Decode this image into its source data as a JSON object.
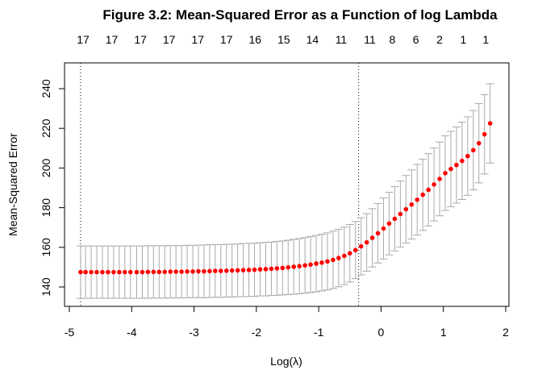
{
  "chart_data": {
    "type": "scatter",
    "title": "Figure 3.2: Mean-Squared Error as a Function of log Lambda",
    "xlabel": "Log(λ)",
    "ylabel": "Mean-Squared Error",
    "xlim": [
      -5,
      2
    ],
    "ylim": [
      130,
      250
    ],
    "x_ticks": [
      -5,
      -4,
      -3,
      -2,
      -1,
      0,
      1,
      2
    ],
    "y_ticks": [
      140,
      160,
      180,
      200,
      220,
      240
    ],
    "x_tick_labels": [
      "-5",
      "-4",
      "-3",
      "-2",
      "-1",
      "0",
      "1",
      "2"
    ],
    "y_tick_labels": [
      "140",
      "160",
      "180",
      "200",
      "220",
      "240"
    ],
    "top_axis": {
      "positions": [
        -4.78,
        -4.32,
        -3.86,
        -3.4,
        -2.94,
        -2.48,
        -2.02,
        -1.56,
        -1.1,
        -0.64,
        -0.18,
        0.18,
        0.56,
        0.94,
        1.32,
        1.68
      ],
      "labels": [
        "17",
        "17",
        "17",
        "17",
        "17",
        "17",
        "16",
        "15",
        "14",
        "11",
        "11",
        "8",
        "6",
        "2",
        "1",
        "1"
      ]
    },
    "reference_lines": [
      -4.82,
      -0.36
    ],
    "grid": false,
    "point_color": "#ff0000",
    "errorbar_color": "#a9a9a9",
    "series": [
      {
        "x": [
          -4.82,
          -4.74,
          -4.65,
          -4.56,
          -4.47,
          -4.38,
          -4.29,
          -4.2,
          -4.11,
          -4.02,
          -3.92,
          -3.83,
          -3.74,
          -3.65,
          -3.56,
          -3.47,
          -3.38,
          -3.29,
          -3.2,
          -3.11,
          -3.02,
          -2.93,
          -2.84,
          -2.75,
          -2.66,
          -2.57,
          -2.48,
          -2.39,
          -2.3,
          -2.21,
          -2.12,
          -2.03,
          -1.94,
          -1.85,
          -1.76,
          -1.67,
          -1.58,
          -1.49,
          -1.4,
          -1.31,
          -1.22,
          -1.13,
          -1.04,
          -0.95,
          -0.86,
          -0.77,
          -0.68,
          -0.59,
          -0.5,
          -0.41,
          -0.32,
          -0.23,
          -0.14,
          -0.05,
          0.04,
          0.13,
          0.22,
          0.31,
          0.4,
          0.49,
          0.58,
          0.67,
          0.76,
          0.85,
          0.94,
          1.03,
          1.12,
          1.21,
          1.3,
          1.39,
          1.48,
          1.57,
          1.66,
          1.75
        ],
        "y": [
          147.5,
          147.5,
          147.5,
          147.5,
          147.5,
          147.5,
          147.5,
          147.5,
          147.5,
          147.5,
          147.5,
          147.5,
          147.6,
          147.6,
          147.6,
          147.6,
          147.7,
          147.7,
          147.7,
          147.8,
          147.8,
          147.9,
          147.9,
          148.0,
          148.1,
          148.1,
          148.2,
          148.3,
          148.4,
          148.5,
          148.6,
          148.7,
          148.9,
          149.0,
          149.2,
          149.4,
          149.6,
          149.9,
          150.2,
          150.5,
          150.9,
          151.3,
          151.8,
          152.3,
          152.9,
          153.7,
          154.6,
          155.7,
          157.0,
          158.6,
          160.5,
          162.5,
          164.8,
          167.1,
          169.5,
          172.0,
          174.4,
          176.8,
          179.2,
          181.6,
          184.0,
          186.5,
          189.0,
          191.7,
          194.5,
          197.4,
          199.5,
          201.5,
          203.6,
          206.0,
          209.0,
          212.5,
          217.0,
          222.5
        ],
        "err": [
          13.2,
          13.2,
          13.2,
          13.2,
          13.2,
          13.2,
          13.2,
          13.2,
          13.2,
          13.2,
          13.2,
          13.2,
          13.2,
          13.2,
          13.2,
          13.2,
          13.2,
          13.2,
          13.2,
          13.2,
          13.2,
          13.2,
          13.3,
          13.3,
          13.3,
          13.3,
          13.3,
          13.3,
          13.3,
          13.4,
          13.4,
          13.4,
          13.4,
          13.5,
          13.5,
          13.6,
          13.6,
          13.7,
          13.8,
          13.9,
          14.0,
          14.1,
          14.2,
          14.3,
          14.4,
          14.5,
          14.5,
          14.5,
          14.5,
          14.4,
          14.4,
          14.5,
          14.7,
          15.0,
          15.4,
          15.8,
          16.2,
          16.6,
          17.0,
          17.4,
          17.8,
          18.0,
          18.2,
          18.4,
          18.6,
          18.8,
          19.0,
          19.2,
          19.5,
          19.8,
          20.0,
          20.0,
          20.0,
          20.0
        ]
      }
    ]
  }
}
